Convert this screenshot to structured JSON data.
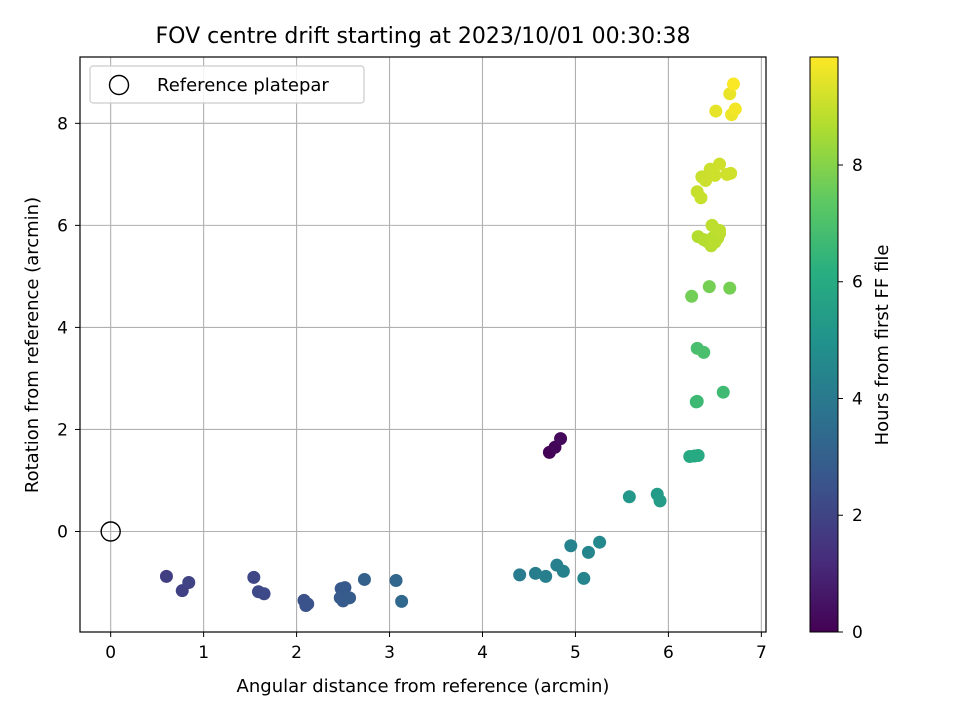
{
  "chart_data": {
    "type": "scatter",
    "title": "FOV centre drift starting at 2023/10/01 00:30:38",
    "xlabel": "Angular distance from reference (arcmin)",
    "ylabel": "Rotation from reference (arcmin)",
    "xlim": [
      -0.33,
      7.05
    ],
    "ylim": [
      -1.97,
      9.3
    ],
    "xticks": [
      0,
      1,
      2,
      3,
      4,
      5,
      6,
      7
    ],
    "yticks": [
      0,
      2,
      4,
      6,
      8
    ],
    "grid": true,
    "legend": {
      "position": "top-left",
      "entries": [
        "Reference platepar"
      ]
    },
    "reference_point": {
      "x": 0,
      "y": 0,
      "label": "Reference platepar"
    },
    "colorbar": {
      "label": "Hours from first FF file",
      "range": [
        0,
        9.85
      ],
      "ticks": [
        0,
        2,
        4,
        6,
        8
      ],
      "colormap": "viridis"
    },
    "points": [
      {
        "x": 4.72,
        "y": 1.55,
        "h": 0.05
      },
      {
        "x": 4.78,
        "y": 1.65,
        "h": 0.15
      },
      {
        "x": 4.84,
        "y": 1.82,
        "h": 0.25
      },
      {
        "x": 0.6,
        "y": -0.88,
        "h": 1.8
      },
      {
        "x": 0.77,
        "y": -1.16,
        "h": 1.9
      },
      {
        "x": 0.84,
        "y": -1.0,
        "h": 1.95
      },
      {
        "x": 1.54,
        "y": -0.9,
        "h": 2.1
      },
      {
        "x": 1.59,
        "y": -1.18,
        "h": 2.15
      },
      {
        "x": 1.65,
        "y": -1.22,
        "h": 2.2
      },
      {
        "x": 2.08,
        "y": -1.35,
        "h": 2.4
      },
      {
        "x": 2.1,
        "y": -1.45,
        "h": 2.45
      },
      {
        "x": 2.12,
        "y": -1.42,
        "h": 2.5
      },
      {
        "x": 2.48,
        "y": -1.12,
        "h": 2.75
      },
      {
        "x": 2.52,
        "y": -1.1,
        "h": 2.78
      },
      {
        "x": 2.47,
        "y": -1.3,
        "h": 2.8
      },
      {
        "x": 2.5,
        "y": -1.36,
        "h": 2.82
      },
      {
        "x": 2.57,
        "y": -1.3,
        "h": 2.85
      },
      {
        "x": 2.73,
        "y": -0.94,
        "h": 3.0
      },
      {
        "x": 3.07,
        "y": -0.96,
        "h": 3.25
      },
      {
        "x": 3.13,
        "y": -1.37,
        "h": 3.3
      },
      {
        "x": 4.4,
        "y": -0.85,
        "h": 4.1
      },
      {
        "x": 4.57,
        "y": -0.82,
        "h": 4.15
      },
      {
        "x": 4.68,
        "y": -0.88,
        "h": 4.2
      },
      {
        "x": 4.8,
        "y": -0.66,
        "h": 4.25
      },
      {
        "x": 4.87,
        "y": -0.78,
        "h": 4.3
      },
      {
        "x": 4.95,
        "y": -0.28,
        "h": 4.35
      },
      {
        "x": 5.09,
        "y": -0.92,
        "h": 4.4
      },
      {
        "x": 5.14,
        "y": -0.41,
        "h": 4.45
      },
      {
        "x": 5.26,
        "y": -0.21,
        "h": 4.55
      },
      {
        "x": 5.58,
        "y": 0.68,
        "h": 5.2
      },
      {
        "x": 5.88,
        "y": 0.73,
        "h": 5.35
      },
      {
        "x": 5.91,
        "y": 0.6,
        "h": 5.4
      },
      {
        "x": 6.23,
        "y": 1.47,
        "h": 5.9
      },
      {
        "x": 6.28,
        "y": 1.48,
        "h": 5.95
      },
      {
        "x": 6.32,
        "y": 1.49,
        "h": 6.0
      },
      {
        "x": 6.3,
        "y": 2.54,
        "h": 6.6
      },
      {
        "x": 6.31,
        "y": 2.55,
        "h": 6.65
      },
      {
        "x": 6.59,
        "y": 2.73,
        "h": 6.7
      },
      {
        "x": 6.31,
        "y": 3.59,
        "h": 6.9
      },
      {
        "x": 6.38,
        "y": 3.51,
        "h": 6.95
      },
      {
        "x": 6.25,
        "y": 4.61,
        "h": 7.7
      },
      {
        "x": 6.44,
        "y": 4.8,
        "h": 7.75
      },
      {
        "x": 6.66,
        "y": 4.77,
        "h": 7.75
      },
      {
        "x": 6.32,
        "y": 5.78,
        "h": 8.7
      },
      {
        "x": 6.38,
        "y": 5.72,
        "h": 8.72
      },
      {
        "x": 6.42,
        "y": 5.68,
        "h": 8.74
      },
      {
        "x": 6.46,
        "y": 5.6,
        "h": 8.76
      },
      {
        "x": 6.48,
        "y": 5.76,
        "h": 8.78
      },
      {
        "x": 6.5,
        "y": 5.67,
        "h": 8.8
      },
      {
        "x": 6.53,
        "y": 5.75,
        "h": 8.82
      },
      {
        "x": 6.55,
        "y": 5.84,
        "h": 8.84
      },
      {
        "x": 6.55,
        "y": 5.9,
        "h": 8.86
      },
      {
        "x": 6.47,
        "y": 6.0,
        "h": 8.88
      },
      {
        "x": 6.31,
        "y": 6.66,
        "h": 9.0
      },
      {
        "x": 6.35,
        "y": 6.54,
        "h": 9.02
      },
      {
        "x": 6.36,
        "y": 6.95,
        "h": 9.04
      },
      {
        "x": 6.4,
        "y": 6.88,
        "h": 9.06
      },
      {
        "x": 6.45,
        "y": 7.1,
        "h": 9.08
      },
      {
        "x": 6.5,
        "y": 6.98,
        "h": 9.1
      },
      {
        "x": 6.55,
        "y": 7.2,
        "h": 9.12
      },
      {
        "x": 6.63,
        "y": 7.0,
        "h": 9.14
      },
      {
        "x": 6.67,
        "y": 7.02,
        "h": 9.16
      },
      {
        "x": 6.51,
        "y": 8.24,
        "h": 9.5
      },
      {
        "x": 6.66,
        "y": 8.58,
        "h": 9.55
      },
      {
        "x": 6.68,
        "y": 8.17,
        "h": 9.6
      },
      {
        "x": 6.7,
        "y": 8.77,
        "h": 9.8
      },
      {
        "x": 6.72,
        "y": 8.28,
        "h": 9.7
      }
    ]
  }
}
